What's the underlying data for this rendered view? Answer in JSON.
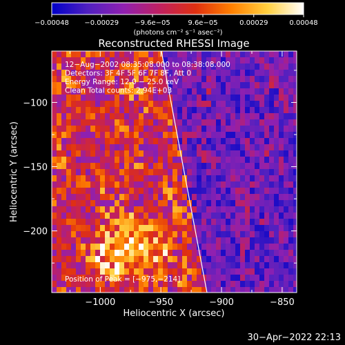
{
  "chart_data": {
    "type": "heatmap",
    "title": "Reconstructed RHESSI Image",
    "xlabel": "Heliocentric X (arcsec)",
    "ylabel": "Heliocentric Y (arcsec)",
    "xlim": [
      -1040,
      -838
    ],
    "ylim": [
      -248,
      -60
    ],
    "x_ticks": [
      -1000,
      -950,
      -900,
      -850
    ],
    "x_tick_labels": [
      "−1000",
      "−950",
      "−900",
      "−850"
    ],
    "y_ticks": [
      -100,
      -150,
      -200
    ],
    "y_tick_labels": [
      "−100",
      "−150",
      "−200"
    ],
    "colorbar": {
      "min": -0.00048,
      "max": 0.00048,
      "ticks": [
        -0.00048,
        -0.00029,
        -9.6e-05,
        9.6e-05,
        0.00029,
        0.00048
      ],
      "tick_labels": [
        "−0.00048",
        "−0.00029",
        "−9.6e−05",
        "9.6e−05",
        "0.00029",
        "0.00048"
      ],
      "units_label": "(photons cm⁻² s⁻¹ asec⁻²)",
      "colors": [
        "#0000c8",
        "#5020c0",
        "#9020b0",
        "#c02060",
        "#e03010",
        "#ff8000",
        "#ffd040",
        "#ffffff"
      ]
    },
    "annotations": [
      "12−Aug−2002 08:35:08.000 to 08:38:08.000",
      "Detectors: 3F 4F 5F 6F 7F 8F, Att 0",
      "Energy Range: 12.0 − 25.0 keV",
      "Clean     Total counts: 2.94E+03"
    ],
    "peak_label": "Position of Peak = [−975,−214]",
    "limb_line": [
      [
        -950,
        -58
      ],
      [
        -912,
        -248
      ]
    ],
    "brightest_region": [
      -975,
      -214
    ]
  },
  "footer": {
    "date": "30−Apr−2022 22:13"
  }
}
